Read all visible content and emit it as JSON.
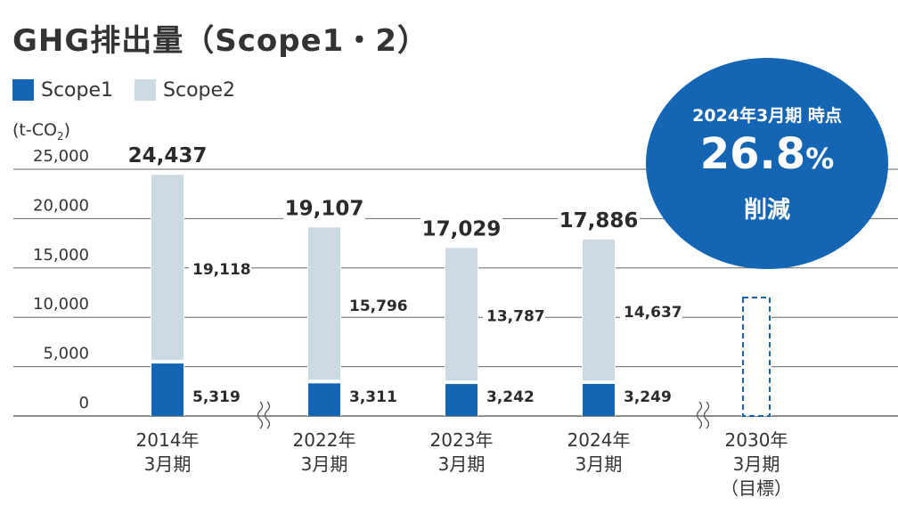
{
  "title": "GHG排出量（Scope1・2）",
  "unit_label_prefix": "(t-CO",
  "unit_label_sub": "2",
  "unit_label_suffix": ")",
  "callout": {
    "line1": "2024年3月期 時点",
    "value": "26.8",
    "percent": "%",
    "line3": "削減"
  },
  "colors": {
    "scope1": "#1565b5",
    "scope2": "#ccdbe3",
    "grid": "#666666",
    "callout": "#1565b5"
  },
  "chart_data": {
    "type": "bar",
    "stacked": true,
    "categories": [
      [
        "2014年",
        "3月期"
      ],
      [
        "2022年",
        "3月期"
      ],
      [
        "2023年",
        "3月期"
      ],
      [
        "2024年",
        "3月期"
      ],
      [
        "2030年",
        "3月期",
        "（目標）"
      ]
    ],
    "series": [
      {
        "name": "Scope1",
        "values": [
          5319,
          3311,
          3242,
          3249,
          null
        ]
      },
      {
        "name": "Scope2",
        "values": [
          19118,
          15796,
          13787,
          14637,
          null
        ]
      }
    ],
    "scope1_labels": [
      "5,319",
      "3,311",
      "3,242",
      "3,249"
    ],
    "scope2_labels": [
      "19,118",
      "15,796",
      "13,787",
      "14,637"
    ],
    "totals": [
      24437,
      19107,
      17029,
      17886,
      null
    ],
    "total_labels": [
      "24,437",
      "19,107",
      "17,029",
      "17,886"
    ],
    "target_value": 12000,
    "yticks": [
      0,
      5000,
      10000,
      15000,
      20000,
      25000
    ],
    "ytick_labels": [
      "0",
      "5,000",
      "10,000",
      "15,000",
      "20,000",
      "25,000"
    ],
    "ylim": [
      0,
      26000
    ],
    "grid": true,
    "legend": "top-left",
    "axis_breaks": "between 2014 and 2022, and between 2024 and 2030"
  }
}
